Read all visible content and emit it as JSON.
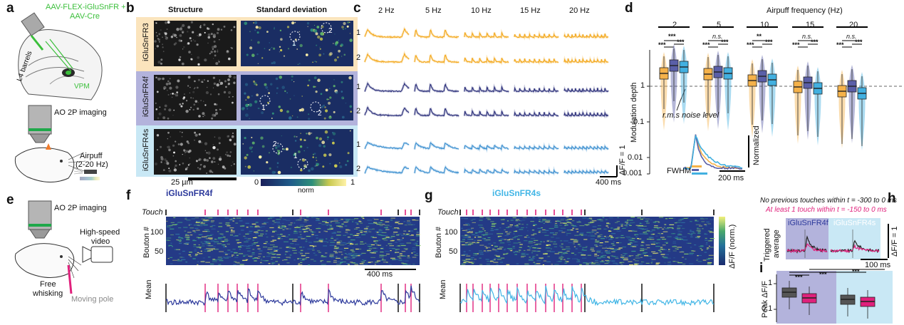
{
  "panels": {
    "a": "a",
    "b": "b",
    "c": "c",
    "d": "d",
    "e": "e",
    "f": "f",
    "g": "g",
    "h": "h",
    "i": "i"
  },
  "a": {
    "virus": "AAV-FLEX-iGluSnFR +",
    "virus2": "AAV-Cre",
    "l4": "L4 barrels",
    "vpm": "VPM",
    "imaging": "AO 2P imaging",
    "airpuff": "Airpuff",
    "airpuff_freq": "(2-20 Hz)"
  },
  "b": {
    "col_structure": "Structure",
    "col_std": "Standard deviation",
    "rows": [
      "iGluSnFR3",
      "iGluSnFR4f",
      "iGluSnFR4s"
    ],
    "roi_labels": [
      [
        "1",
        "2"
      ],
      [
        "1",
        "2"
      ],
      [
        "2",
        "1"
      ]
    ],
    "scalebar": "25 µm",
    "cbar_min": "0",
    "cbar_max": "1",
    "cbar_label": "norm",
    "colors": {
      "iGluSnFR3": "#fbe4bd",
      "iGluSnFR4f": "#b3b3dc",
      "iGluSnFR4s": "#c9e8f5"
    }
  },
  "c": {
    "freqs": [
      "2 Hz",
      "5 Hz",
      "10 Hz",
      "15 Hz",
      "20 Hz"
    ],
    "row_labels": [
      "1",
      "2",
      "1",
      "2",
      "1",
      "2"
    ],
    "scale_y": "ΔF/F = 1",
    "scale_x": "400 ms",
    "colors": [
      "#f3a81c",
      "#f3a81c",
      "#2b2f7a",
      "#2b2f7a",
      "#3b8fd0",
      "#3b8fd0"
    ]
  },
  "d": {
    "title": "Airpuff frequency (Hz)",
    "groups": [
      "2",
      "5",
      "10",
      "15",
      "20"
    ],
    "sig_top": [
      "***",
      "n.s.",
      "**",
      "n.s.",
      "n.s."
    ],
    "sig_left": [
      "***",
      "***",
      "***",
      "***",
      "***"
    ],
    "sig_right": [
      "***",
      "***",
      "***",
      "***",
      "***"
    ],
    "ylabel": "Modulation depth",
    "yticks": [
      "1",
      "0.1",
      "0.01",
      "0.001"
    ],
    "noise_label": "r.m.s noise level",
    "normalized": "Normalized",
    "scale_x": "200 ms",
    "fwhm": "FWHM",
    "colors": {
      "3": "#f5b24a",
      "4f": "#5a5fa8",
      "4s": "#42b0e0"
    }
  },
  "e": {
    "imaging": "AO 2P imaging",
    "video": "High-speed",
    "video2": "video",
    "whisking": "Free",
    "whisking2": "whisking",
    "pole": "Moving pole"
  },
  "f": {
    "title": "iGluSnFR4f",
    "touch": "Touch",
    "ylabel": "Bouton #",
    "yticks": [
      "100",
      "50"
    ],
    "mean": "Mean",
    "scale_x": "400 ms",
    "trace_color": "#2d3a9c"
  },
  "g": {
    "title": "iGluSnFR4s",
    "touch": "Touch",
    "ylabel": "Bouton #",
    "yticks": [
      "100",
      "50"
    ],
    "mean": "Mean",
    "cbar_label": "ΔF/F (norm.)",
    "trace_color": "#42b6e6"
  },
  "h": {
    "legend1": "No previous touches within t = -300 to 0 ms",
    "legend2": "At least 1 touch within t = -150 to 0 ms",
    "label_4f": "iGluSnFR4f",
    "label_4s": "iGluSnFR4s",
    "ylabel": "Triggered",
    "ylabel2": "average",
    "scale_y": "ΔF/F = 1",
    "scale_x": "100 ms"
  },
  "i": {
    "ylabel": "Peak ΔF/F",
    "yticks": [
      "1",
      "0.1"
    ],
    "sig": [
      "***",
      "***",
      "***"
    ]
  }
}
